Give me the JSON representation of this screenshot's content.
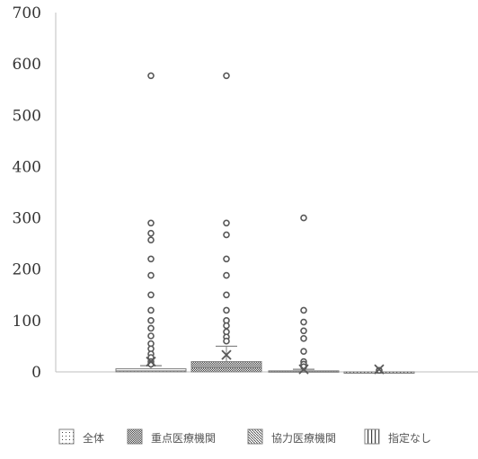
{
  "chart_data": {
    "type": "box",
    "title": "",
    "xlabel": "",
    "ylabel": "",
    "ylim": [
      0,
      700
    ],
    "yticks": [
      0,
      100,
      200,
      300,
      400,
      500,
      600,
      700
    ],
    "grid": false,
    "legend_position": "bottom",
    "categories": [
      "全体",
      "重点医療機関",
      "協力医療機関",
      "指定なし"
    ],
    "series": [
      {
        "name": "全体",
        "pattern": "dots",
        "q1": 0,
        "median": 2,
        "q3": 6,
        "whisker_low": 0,
        "whisker_high": 12,
        "mean": 20,
        "outliers": [
          577,
          290,
          270,
          257,
          220,
          188,
          150,
          120,
          100,
          85,
          70,
          55,
          45,
          35,
          28,
          20,
          15
        ]
      },
      {
        "name": "重点医療機関",
        "pattern": "checker",
        "q1": 0,
        "median": 8,
        "q3": 20,
        "whisker_low": 0,
        "whisker_high": 50,
        "mean": 33,
        "outliers": [
          577,
          290,
          267,
          220,
          188,
          150,
          120,
          100,
          90,
          78,
          68,
          60
        ]
      },
      {
        "name": "協力医療機関",
        "pattern": "diagonal",
        "q1": 0,
        "median": 1,
        "q3": 2,
        "whisker_low": 0,
        "whisker_high": 5,
        "mean": 5,
        "outliers": [
          300,
          120,
          97,
          80,
          65,
          40,
          20,
          15,
          10
        ]
      },
      {
        "name": "指定なし",
        "pattern": "vertical",
        "q1": 0,
        "median": 0,
        "q3": 0,
        "whisker_low": 0,
        "whisker_high": 0,
        "mean": 5,
        "outliers": [
          3
        ]
      }
    ],
    "colors": {
      "axis": "#bfbfbf",
      "box_stroke": "#7f7f7f",
      "pattern": "#404040",
      "outlier": "#595959",
      "mean": "#595959"
    }
  }
}
